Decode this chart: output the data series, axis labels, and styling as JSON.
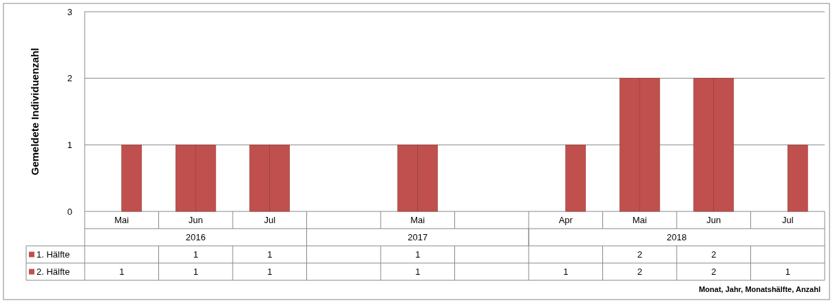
{
  "chart_data": {
    "type": "bar",
    "ylabel": "Gemeldete Individuenzahl",
    "categories": [
      "Mai",
      "Jun",
      "Jul",
      null,
      "Mai",
      null,
      "Apr",
      "Mai",
      "Jun",
      "Jul"
    ],
    "series": [
      {
        "name": "1. Hälfte",
        "color": "#c0504d",
        "values": [
          null,
          1,
          1,
          null,
          1,
          null,
          null,
          2,
          2,
          null
        ]
      },
      {
        "name": "2. Hälfte",
        "color": "#c0504d",
        "values": [
          1,
          1,
          1,
          null,
          1,
          null,
          1,
          2,
          2,
          1
        ]
      }
    ],
    "annotations": [
      "2016",
      "2017",
      "2018",
      "Monat, Jahr, Monatshälfte, Anzahl"
    ],
    "ylim": [
      0,
      3
    ],
    "yticks": [
      0,
      1,
      2,
      3
    ],
    "grid": "y",
    "legend": "bottom",
    "data_labels": true
  }
}
